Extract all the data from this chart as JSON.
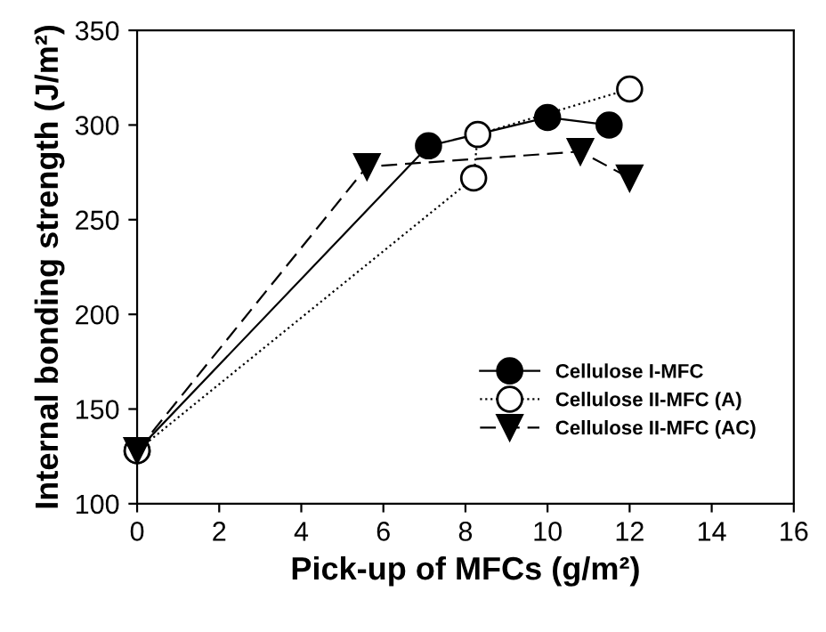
{
  "chart_data": {
    "type": "line",
    "xlabel": "Pick-up of MFCs (g/m²)",
    "ylabel": "Internal bonding strength (J/m²)",
    "xlim": [
      0,
      16
    ],
    "ylim": [
      100,
      350
    ],
    "xticks": [
      0,
      2,
      4,
      6,
      8,
      10,
      12,
      14,
      16
    ],
    "yticks": [
      100,
      150,
      200,
      250,
      300,
      350
    ],
    "grid": false,
    "legend": "bottom right",
    "series": [
      {
        "name": "Cellulose I-MFC",
        "color": "#000000",
        "x": [
          0,
          7.1,
          10,
          11.5
        ],
        "values": [
          128,
          289,
          304,
          300
        ],
        "marker": "circle",
        "line_style": "solid"
      },
      {
        "name": "Cellulose II-MFC (A)",
        "color": "#000000",
        "x": [
          0,
          8.2,
          8.3,
          12
        ],
        "values": [
          128,
          272,
          295,
          319
        ],
        "marker": "circle",
        "line_style": "dotted"
      },
      {
        "name": "Cellulose II-MFC (AC)",
        "color": "#000000",
        "x": [
          0,
          5.6,
          10.8,
          12
        ],
        "values": [
          128,
          278,
          286,
          272
        ],
        "marker": "triangle",
        "line_style": "dashed"
      }
    ]
  }
}
